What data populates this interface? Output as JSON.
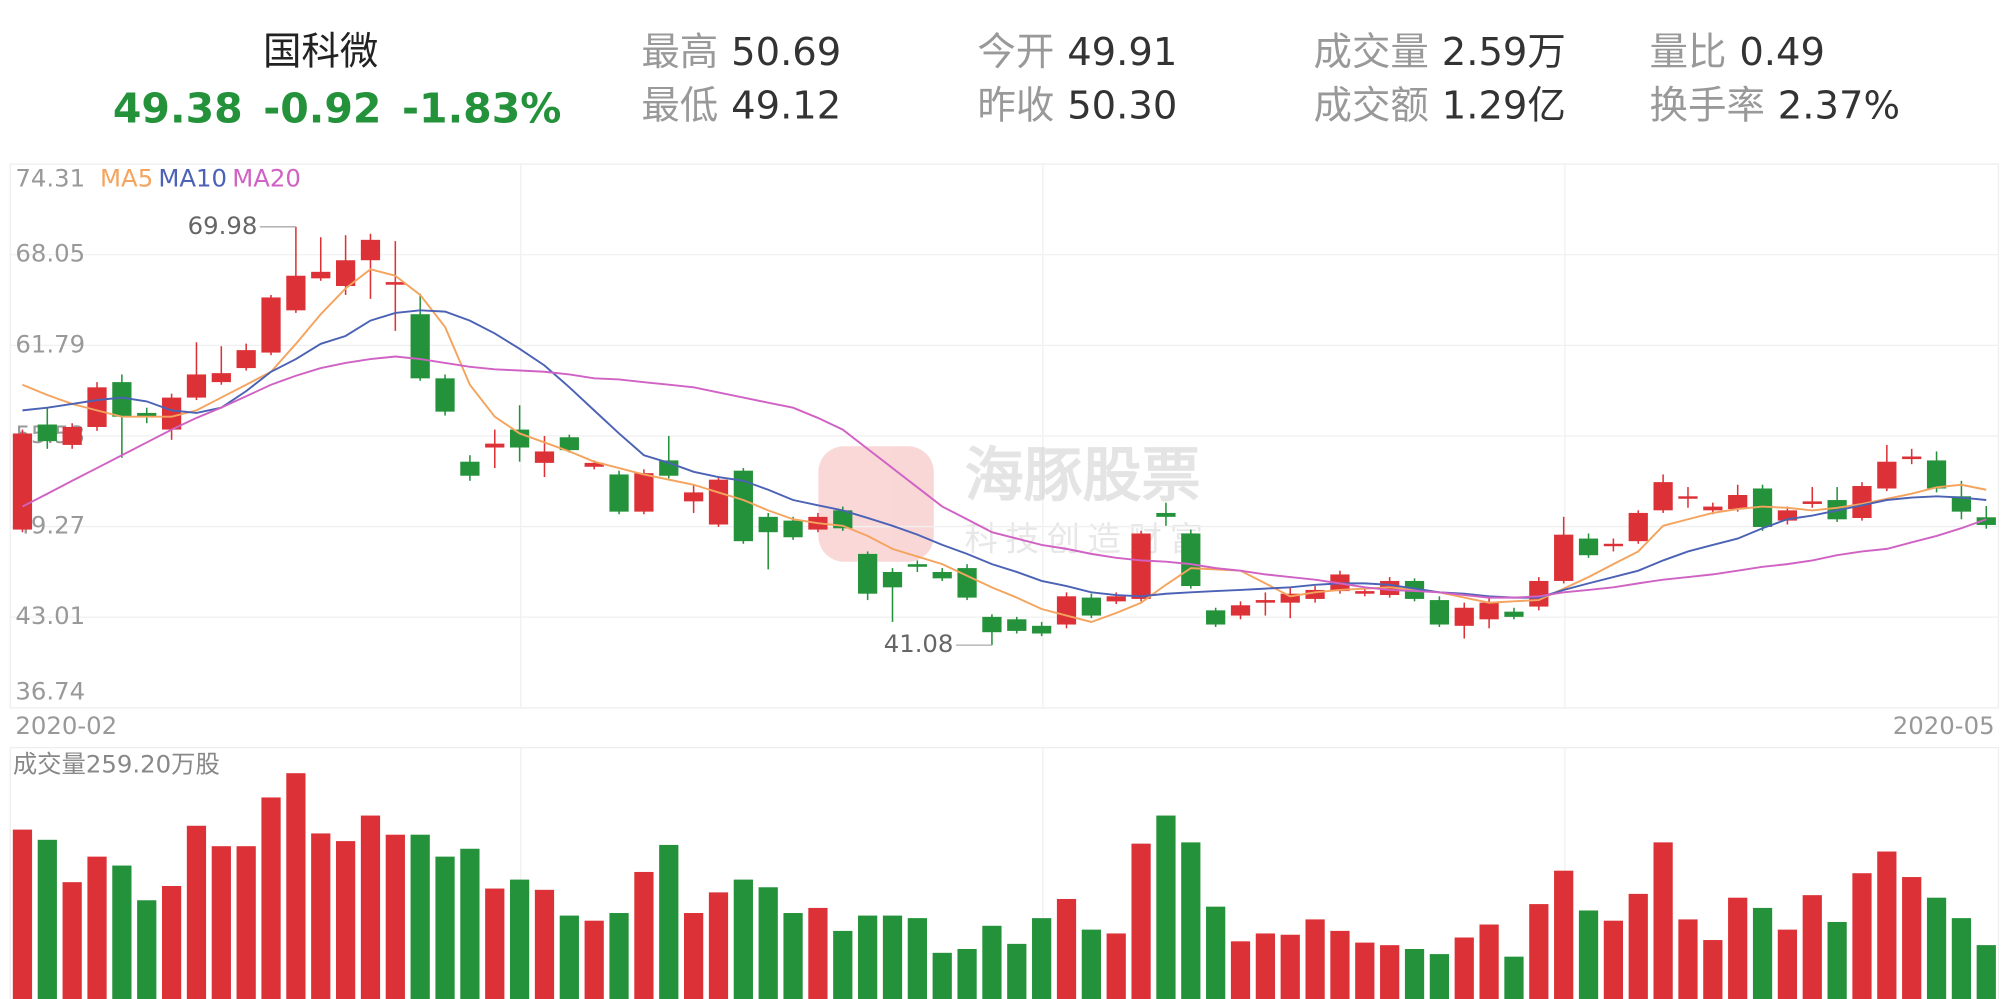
{
  "header": {
    "name": "国科微",
    "price": "49.38",
    "change": "-0.92",
    "change_pct": "-1.83%",
    "stats": [
      {
        "label": "最高",
        "value": "50.69"
      },
      {
        "label": "最低",
        "value": "49.12"
      },
      {
        "label": "今开",
        "value": "49.91"
      },
      {
        "label": "昨收",
        "value": "50.30"
      },
      {
        "label": "成交量",
        "value": "2.59万"
      },
      {
        "label": "成交额",
        "value": "1.29亿"
      },
      {
        "label": "量比",
        "value": "0.49"
      },
      {
        "label": "换手率",
        "value": "2.37%"
      }
    ]
  },
  "watermark": {
    "title": "海豚股票",
    "subtitle": "科技创造财富"
  },
  "chart_data": {
    "type": "candlestick",
    "categories": [
      "2020-02",
      null,
      null,
      null,
      null,
      null,
      null,
      null,
      null,
      null,
      null,
      null,
      null,
      null,
      null,
      null,
      null,
      null,
      null,
      null,
      null,
      null,
      null,
      null,
      null,
      null,
      null,
      null,
      null,
      null,
      null,
      null,
      null,
      null,
      null,
      null,
      null,
      null,
      null,
      null,
      null,
      null,
      null,
      null,
      null,
      null,
      null,
      null,
      null,
      null,
      null,
      null,
      null,
      null,
      null,
      null,
      null,
      null,
      null,
      null,
      null,
      null,
      null,
      null,
      null,
      null,
      null,
      null,
      null,
      null,
      null,
      null,
      null,
      null,
      null,
      null,
      null,
      null,
      null,
      "2020-05"
    ],
    "open": [
      49.06,
      56.32,
      54.91,
      56.15,
      59.25,
      57.12,
      55.97,
      58.18,
      59.25,
      60.22,
      61.29,
      64.21,
      66.42,
      65.89,
      67.67,
      65.98,
      63.94,
      59.51,
      53.75,
      54.73,
      55.97,
      53.67,
      55.44,
      53.4,
      52.87,
      50.3,
      53.84,
      51.01,
      49.41,
      53.13,
      49.94,
      49.68,
      49.06,
      50.39,
      47.38,
      46.13,
      46.67,
      46.13,
      46.4,
      43.03,
      42.86,
      42.41,
      42.5,
      44.36,
      44.1,
      44.27,
      50.21,
      48.79,
      43.48,
      43.12,
      44.01,
      44.01,
      44.27,
      44.81,
      44.63,
      44.54,
      45.51,
      44.19,
      42.41,
      42.86,
      43.39,
      43.74,
      45.51,
      48.44,
      47.91,
      48.26,
      50.39,
      51.19,
      50.39,
      50.48,
      51.9,
      49.68,
      50.83,
      51.1,
      49.86,
      51.9,
      53.93,
      53.84,
      51.36,
      49.91
    ],
    "high": [
      55.97,
      57.48,
      56.41,
      59.25,
      59.78,
      57.48,
      58.45,
      62.0,
      61.73,
      61.91,
      65.27,
      69.98,
      69.26,
      69.4,
      69.5,
      68.99,
      65.36,
      59.78,
      54.2,
      55.97,
      57.65,
      55.53,
      55.62,
      53.84,
      53.13,
      53.22,
      55.53,
      52.16,
      52.69,
      53.31,
      50.21,
      49.94,
      50.21,
      50.65,
      47.55,
      46.4,
      46.93,
      46.4,
      46.67,
      43.21,
      43.03,
      42.68,
      44.72,
      44.63,
      44.72,
      48.97,
      50.92,
      49.06,
      43.66,
      44.1,
      44.72,
      45.07,
      45.16,
      46.22,
      45.07,
      45.78,
      45.69,
      44.45,
      44.01,
      44.36,
      43.66,
      45.78,
      49.94,
      48.79,
      48.44,
      50.39,
      52.87,
      52.0,
      50.92,
      52.16,
      52.16,
      50.65,
      52.0,
      52.0,
      52.34,
      54.91,
      54.64,
      54.46,
      52.43,
      50.69
    ],
    "low": [
      48.88,
      54.64,
      54.64,
      55.88,
      54.02,
      56.41,
      55.26,
      58.01,
      59.07,
      60.05,
      61.11,
      64.03,
      66.25,
      65.27,
      65.0,
      62.79,
      59.34,
      56.94,
      52.43,
      53.31,
      53.75,
      52.69,
      54.38,
      53.22,
      50.12,
      50.12,
      52.6,
      50.21,
      49.24,
      48.08,
      46.31,
      48.35,
      48.88,
      48.97,
      44.19,
      42.68,
      46.13,
      45.51,
      44.19,
      41.08,
      41.88,
      41.7,
      42.24,
      42.94,
      43.92,
      44.1,
      49.32,
      44.98,
      42.33,
      42.86,
      43.12,
      42.94,
      44.01,
      44.63,
      44.45,
      44.36,
      44.1,
      42.33,
      41.53,
      42.24,
      42.86,
      43.48,
      45.34,
      47.11,
      47.55,
      48.08,
      50.21,
      50.57,
      50.12,
      50.3,
      48.97,
      49.41,
      50.57,
      49.59,
      49.68,
      51.72,
      53.58,
      51.63,
      49.77,
      49.12
    ],
    "close": [
      55.7,
      55.17,
      56.15,
      58.89,
      56.86,
      56.86,
      58.18,
      59.78,
      59.87,
      61.46,
      65.1,
      66.6,
      66.87,
      67.67,
      69.08,
      66.16,
      59.51,
      57.21,
      52.78,
      55.0,
      54.73,
      54.46,
      54.55,
      53.67,
      50.3,
      52.96,
      52.78,
      51.63,
      52.51,
      48.26,
      48.88,
      48.53,
      49.94,
      49.15,
      44.63,
      45.07,
      46.49,
      45.69,
      44.36,
      41.97,
      42.06,
      41.88,
      44.45,
      43.12,
      44.45,
      48.79,
      49.94,
      45.16,
      42.5,
      43.83,
      44.19,
      44.63,
      44.89,
      45.96,
      44.81,
      45.51,
      44.27,
      42.5,
      43.66,
      44.01,
      43.03,
      45.51,
      48.71,
      47.29,
      48.08,
      50.21,
      52.34,
      51.36,
      50.65,
      51.45,
      49.24,
      50.39,
      51.01,
      49.77,
      52.07,
      53.75,
      54.11,
      51.9,
      50.3,
      49.38
    ],
    "ylim": [
      36.74,
      74.31
    ],
    "yticks": [
      74.31,
      68.05,
      61.79,
      55.53,
      49.27,
      43.01,
      36.74
    ],
    "grid": true,
    "up_color": "#dc3237",
    "down_color": "#24923a",
    "ma_series": [
      {
        "name": "MA5",
        "color": "#f4a45e",
        "values": [
          59.07,
          58.36,
          57.74,
          57.3,
          56.86,
          56.86,
          56.86,
          57.3,
          58.18,
          59.07,
          59.96,
          61.9,
          63.94,
          65.72,
          67.04,
          66.6,
          65.27,
          63.06,
          59.07,
          56.86,
          55.7,
          55.08,
          54.46,
          53.75,
          53.31,
          52.87,
          52.51,
          52.16,
          51.63,
          51.1,
          50.39,
          49.77,
          49.5,
          49.32,
          48.62,
          47.73,
          47.2,
          46.67,
          45.87,
          45.07,
          44.36,
          43.57,
          43.12,
          42.68,
          43.3,
          44.01,
          45.25,
          46.4,
          46.31,
          46.22,
          45.34,
          44.45,
          44.72,
          44.89,
          44.98,
          45.07,
          44.89,
          44.72,
          44.36,
          44.01,
          44.1,
          44.19,
          44.98,
          45.78,
          46.67,
          47.55,
          49.32,
          49.77,
          50.21,
          50.48,
          50.65,
          50.56,
          50.39,
          50.56,
          50.83,
          51.18,
          51.54,
          51.98,
          52.16,
          51.81
        ]
      },
      {
        "name": "MA10",
        "color": "#4b62b5",
        "values": [
          57.3,
          57.48,
          57.74,
          58.01,
          58.18,
          57.92,
          57.3,
          57.12,
          57.48,
          58.63,
          59.96,
          60.84,
          61.9,
          62.44,
          63.5,
          64.03,
          64.21,
          64.12,
          63.5,
          62.61,
          61.55,
          60.4,
          58.89,
          57.3,
          55.7,
          54.2,
          53.67,
          53.05,
          52.69,
          52.43,
          51.81,
          51.1,
          50.74,
          50.39,
          49.86,
          49.32,
          48.71,
          48.0,
          47.38,
          46.67,
          46.13,
          45.51,
          45.16,
          44.72,
          44.54,
          44.45,
          44.63,
          44.72,
          44.81,
          44.89,
          44.98,
          45.07,
          45.25,
          45.34,
          45.34,
          45.25,
          44.98,
          44.72,
          44.63,
          44.45,
          44.36,
          44.36,
          44.89,
          45.34,
          45.78,
          46.22,
          46.93,
          47.55,
          48.0,
          48.44,
          49.15,
          49.77,
          50.03,
          50.39,
          50.74,
          51.1,
          51.27,
          51.36,
          51.27,
          51.1
        ]
      },
      {
        "name": "MA20",
        "color": "#d062c4",
        "values": [
          50.65,
          51.54,
          52.43,
          53.31,
          54.2,
          55.08,
          55.97,
          56.77,
          57.48,
          58.27,
          59.07,
          59.69,
          60.22,
          60.58,
          60.84,
          61.02,
          60.84,
          60.58,
          60.31,
          60.13,
          60.05,
          59.96,
          59.78,
          59.51,
          59.43,
          59.25,
          59.07,
          58.89,
          58.54,
          58.18,
          57.83,
          57.48,
          56.77,
          55.97,
          54.64,
          53.31,
          51.98,
          50.65,
          49.77,
          48.88,
          48.44,
          48.0,
          47.73,
          47.38,
          47.11,
          46.93,
          46.84,
          46.67,
          46.4,
          46.22,
          45.96,
          45.78,
          45.6,
          45.34,
          45.07,
          44.89,
          44.81,
          44.72,
          44.54,
          44.36,
          44.36,
          44.45,
          44.72,
          44.89,
          45.07,
          45.34,
          45.6,
          45.78,
          45.96,
          46.22,
          46.49,
          46.67,
          46.93,
          47.29,
          47.55,
          47.73,
          48.18,
          48.62,
          49.15,
          49.77
        ]
      }
    ],
    "volume": {
      "title": "成交量259.20万股",
      "ylim": [
        0,
        1175
      ],
      "values": [
        802,
        754,
        555,
        675,
        633,
        470,
        537,
        820,
        724,
        724,
        953,
        1067,
        784,
        748,
        868,
        778,
        778,
        675,
        712,
        525,
        567,
        519,
        398,
        374,
        410,
        603,
        730,
        410,
        507,
        567,
        531,
        410,
        434,
        326,
        398,
        398,
        386,
        223,
        241,
        350,
        265,
        386,
        476,
        332,
        314,
        736,
        868,
        742,
        440,
        277,
        314,
        308,
        380,
        326,
        271,
        259,
        241,
        217,
        295,
        356,
        205,
        452,
        609,
        422,
        374,
        500,
        742,
        380,
        283,
        482,
        434,
        332,
        494,
        368,
        597,
        699,
        579,
        482,
        386,
        259.2
      ]
    }
  }
}
